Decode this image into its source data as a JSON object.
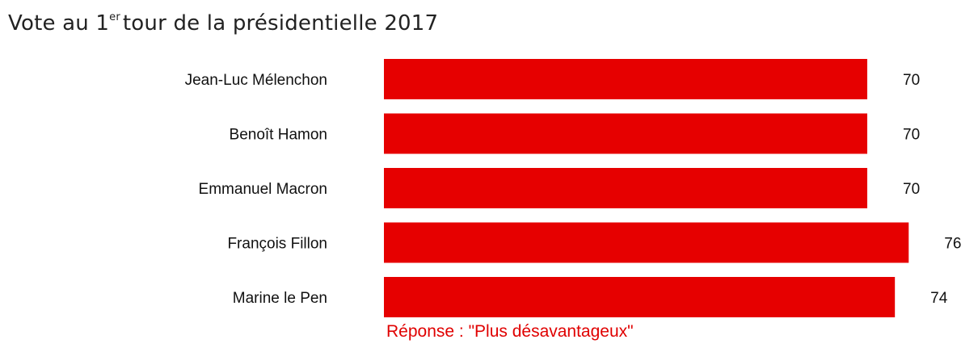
{
  "title": {
    "prefix": "Vote au 1",
    "superscript": "er",
    "suffix": "tour de la présidentielle 2017"
  },
  "note": "Réponse : \"Plus désavantageux\"",
  "colors": {
    "bar": "#e60000",
    "note": "#e00000"
  },
  "chart_data": {
    "type": "bar",
    "orientation": "horizontal",
    "title": "Vote au 1er tour de la présidentielle 2017",
    "categories": [
      "Jean-Luc Mélenchon",
      "Benoît Hamon",
      "Emmanuel Macron",
      "François Fillon",
      "Marine le Pen"
    ],
    "values": [
      70,
      70,
      70,
      76,
      74
    ],
    "xlabel": "",
    "ylabel": "",
    "grid": false,
    "legend": "none"
  }
}
